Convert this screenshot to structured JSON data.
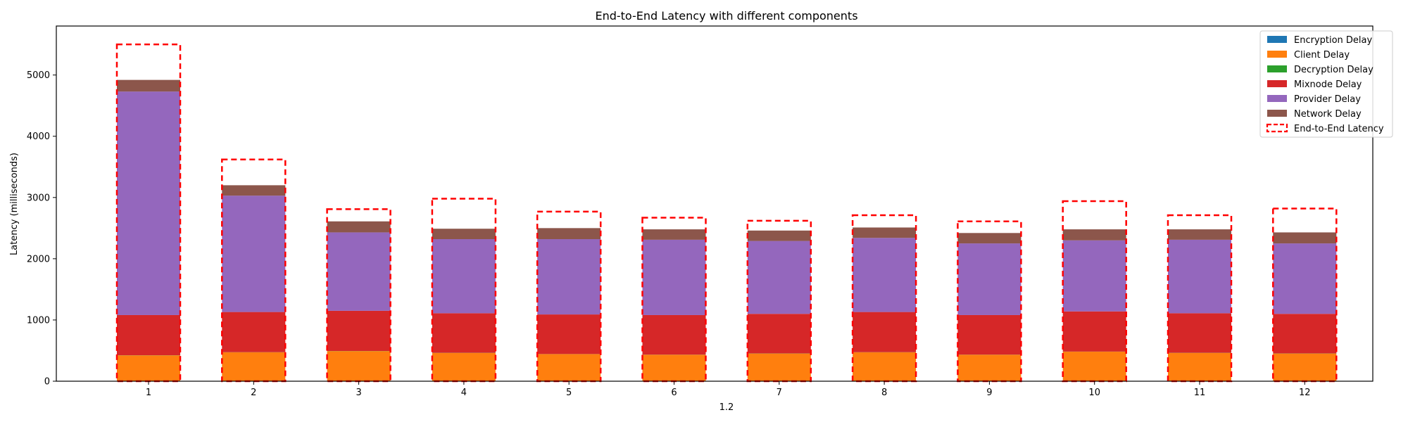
{
  "chart_data": {
    "type": "bar",
    "stacked": true,
    "title": "End-to-End Latency with different components",
    "xlabel": "1.2",
    "ylabel": "Latency (milliseconds)",
    "categories": [
      "1",
      "2",
      "3",
      "4",
      "5",
      "6",
      "7",
      "8",
      "9",
      "10",
      "11",
      "12"
    ],
    "ylim": [
      0,
      5800
    ],
    "yticks": [
      0,
      1000,
      2000,
      3000,
      4000,
      5000
    ],
    "grid": false,
    "legend_position": "top-right",
    "series": [
      {
        "name": "Encryption Delay",
        "color": "#1f77b4",
        "values": [
          2,
          2,
          2,
          2,
          2,
          2,
          2,
          2,
          2,
          2,
          2,
          2
        ]
      },
      {
        "name": "Client Delay",
        "color": "#ff7f0e",
        "values": [
          420,
          470,
          490,
          460,
          440,
          430,
          450,
          470,
          430,
          480,
          460,
          450
        ]
      },
      {
        "name": "Decryption Delay",
        "color": "#2ca02c",
        "values": [
          2,
          2,
          2,
          2,
          2,
          2,
          2,
          2,
          2,
          2,
          2,
          2
        ]
      },
      {
        "name": "Mixnode Delay",
        "color": "#d62728",
        "values": [
          656,
          656,
          656,
          646,
          646,
          646,
          646,
          656,
          646,
          656,
          646,
          646
        ]
      },
      {
        "name": "Provider Delay",
        "color": "#9467bd",
        "values": [
          3650,
          1900,
          1280,
          1210,
          1230,
          1230,
          1190,
          1210,
          1170,
          1160,
          1200,
          1150
        ]
      },
      {
        "name": "Network Delay",
        "color": "#8c564b",
        "values": [
          190,
          170,
          180,
          170,
          180,
          170,
          170,
          170,
          170,
          180,
          170,
          180
        ]
      }
    ],
    "end_to_end": {
      "name": "End-to-End Latency",
      "color": "#ff0000",
      "values": [
        5500,
        3620,
        2810,
        2980,
        2770,
        2670,
        2620,
        2710,
        2610,
        2940,
        2710,
        2820
      ]
    }
  }
}
